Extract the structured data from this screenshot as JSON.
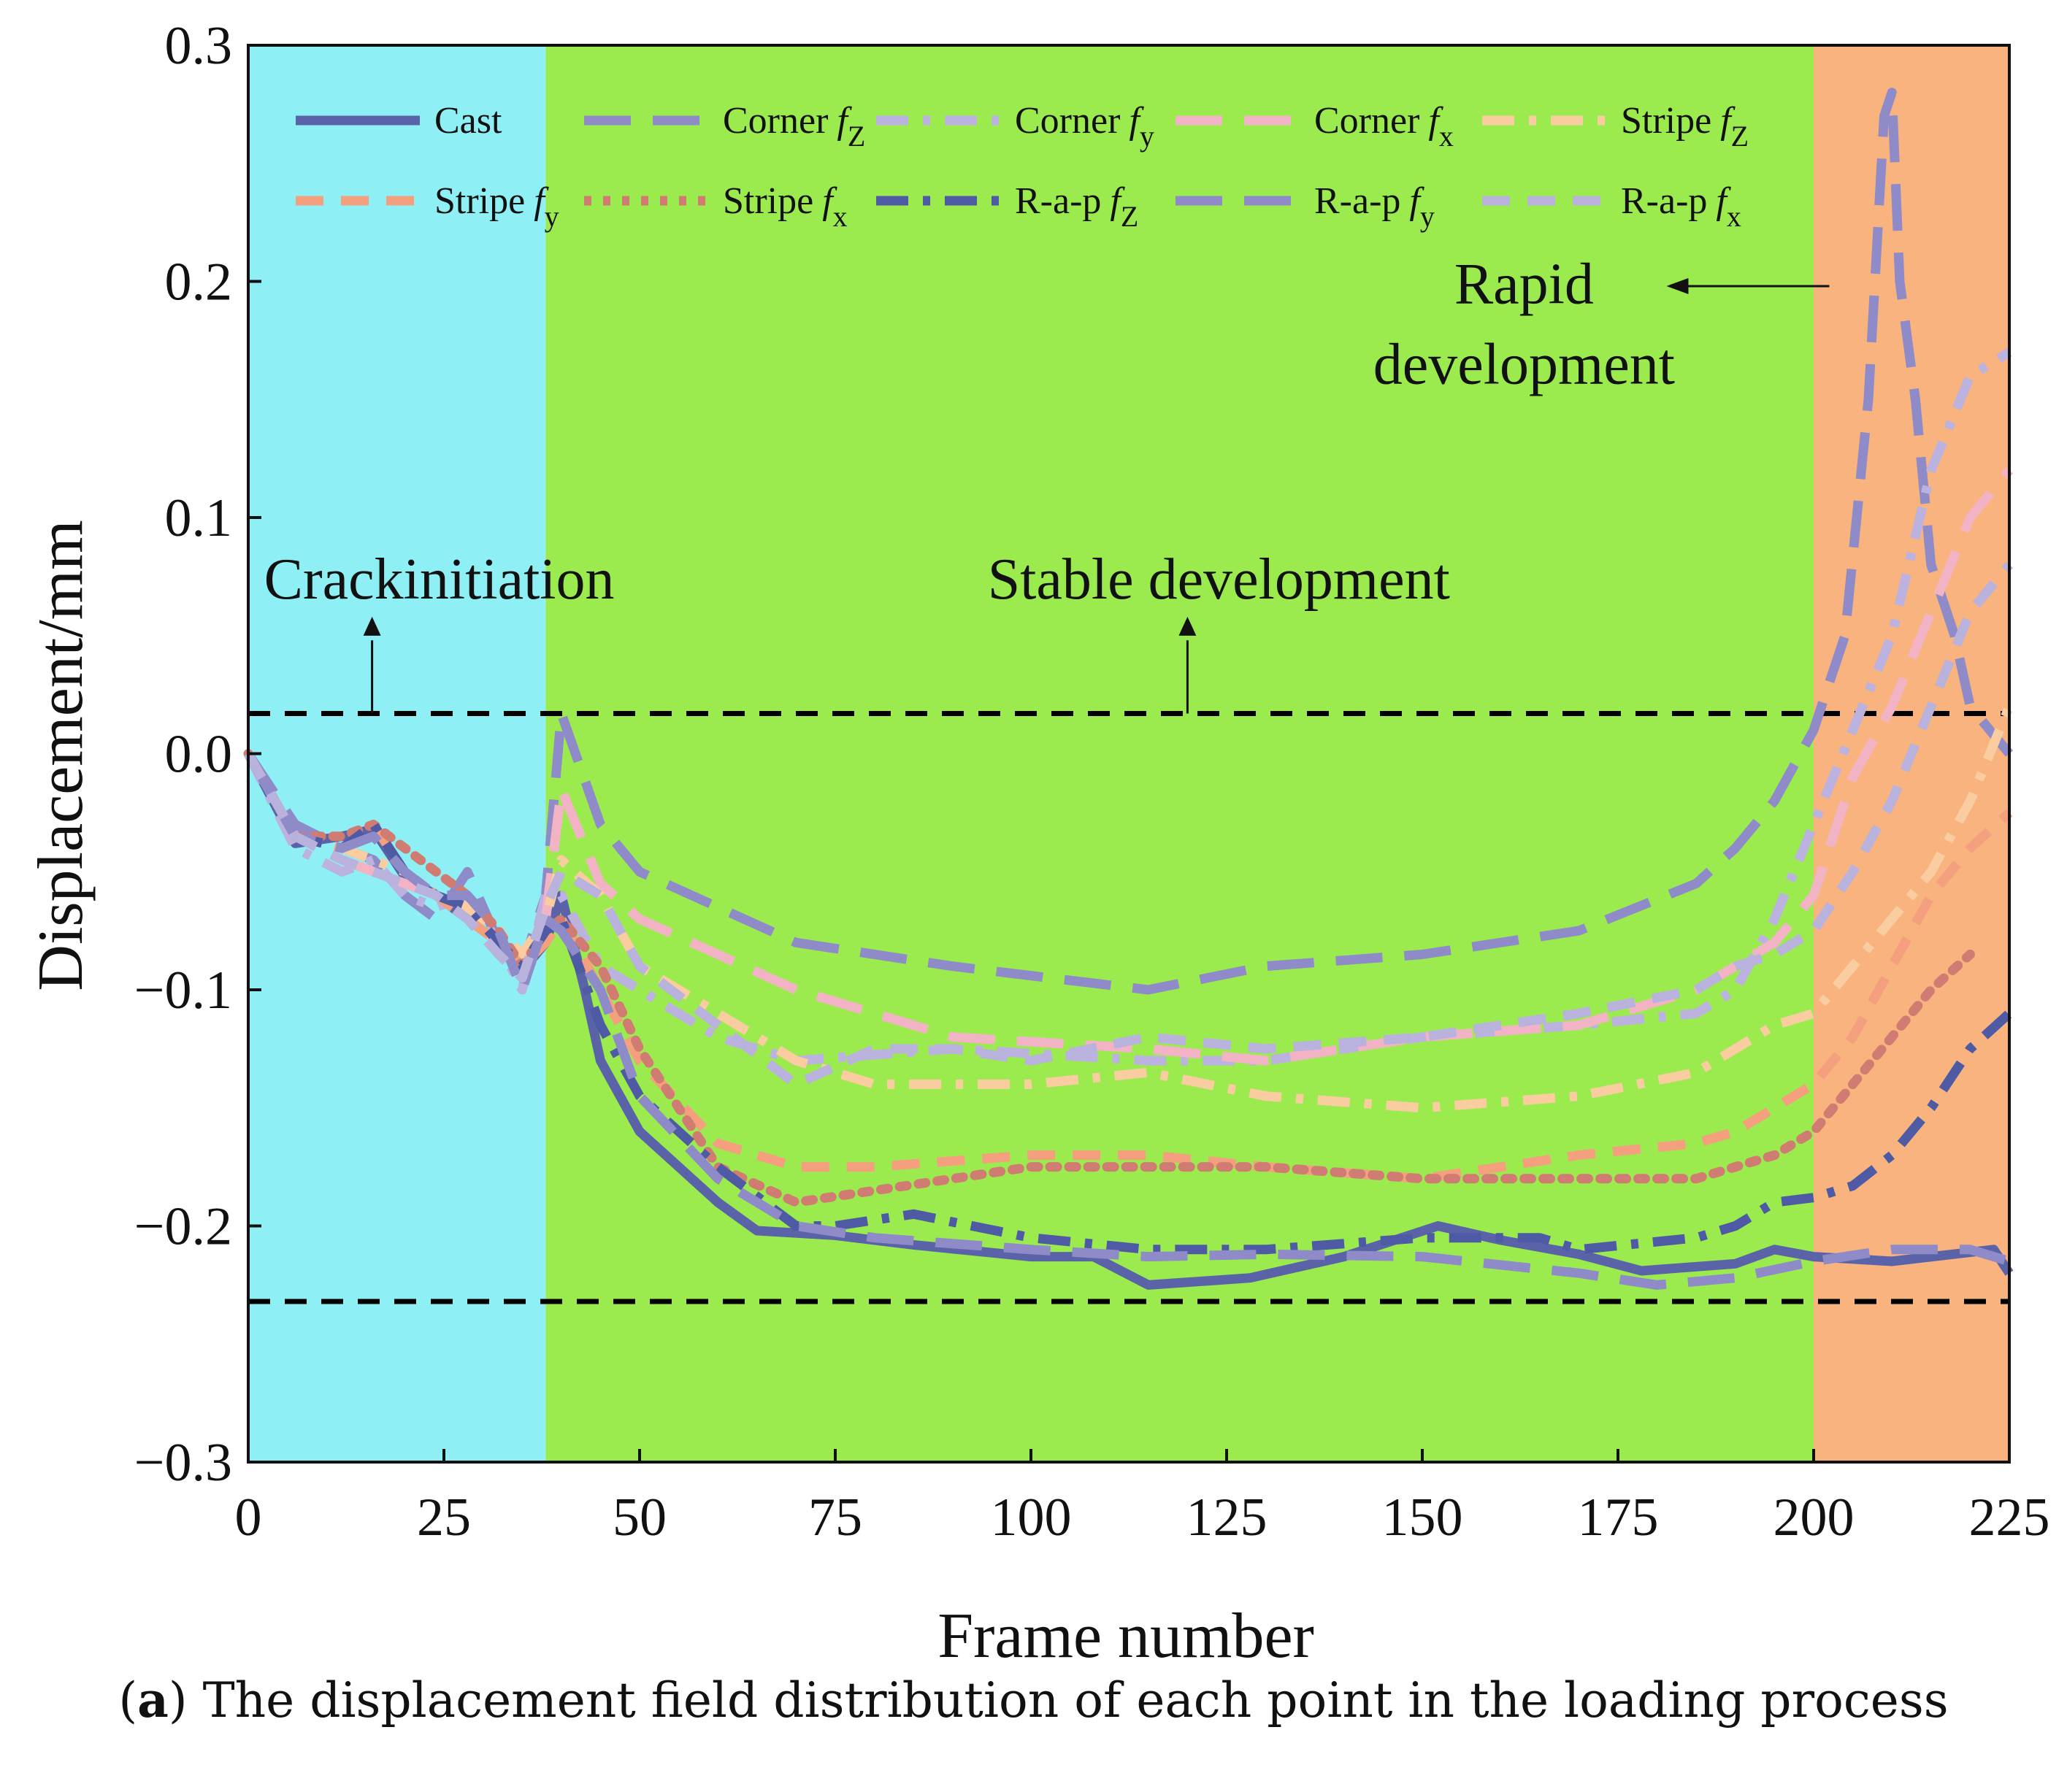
{
  "chart_data": {
    "type": "line",
    "xlabel": "Frame number",
    "ylabel": "Displacement/mm",
    "xlim": [
      0,
      225
    ],
    "ylim": [
      -0.3,
      0.3
    ],
    "x_ticks": [
      0,
      25,
      50,
      75,
      100,
      125,
      150,
      175,
      200,
      225
    ],
    "y_ticks": [
      {
        "value": 0.3,
        "label": "0.3"
      },
      {
        "value": 0.2,
        "label": "0.2"
      },
      {
        "value": 0.1,
        "label": "0.1"
      },
      {
        "value": 0.0,
        "label": "0.0"
      },
      {
        "value": -0.1,
        "label": "−0.1"
      },
      {
        "value": -0.2,
        "label": "−0.2"
      },
      {
        "value": -0.3,
        "label": "−0.3"
      }
    ],
    "grid": false,
    "legend_position": "top (inside plot, two rows)",
    "regions": [
      {
        "x_start": 0,
        "x_end": 38,
        "color": "#8EF0F4"
      },
      {
        "x_start": 38,
        "x_end": 200,
        "color": "#9BEB4F"
      },
      {
        "x_start": 200,
        "x_end": 225,
        "color": "#F8B37E"
      }
    ],
    "reference_lines": [
      {
        "y": 0.017,
        "style": "dashed",
        "color": "#000000"
      },
      {
        "y": -0.232,
        "style": "dashed",
        "color": "#000000"
      }
    ],
    "annotations": [
      {
        "text": "Crackinitiation",
        "x": 30,
        "y": 0.075
      },
      {
        "text": "Stable development",
        "x": 124,
        "y": 0.075
      },
      {
        "text_lines": [
          "Rapid",
          "development"
        ],
        "x": 163,
        "y": 0.2
      }
    ],
    "series": [
      {
        "name": "Cast",
        "sub": "",
        "color": "#5B63A8",
        "dash": "solid",
        "x": [
          0,
          6,
          12,
          16,
          20,
          24,
          28,
          32,
          36,
          38,
          40,
          43,
          45,
          50,
          55,
          60,
          65,
          75,
          85,
          100,
          108,
          115,
          128,
          140,
          152,
          160,
          170,
          178,
          190,
          195,
          200,
          210,
          223,
          225
        ],
        "y": [
          0,
          -0.038,
          -0.035,
          -0.032,
          -0.052,
          -0.06,
          -0.07,
          -0.08,
          -0.088,
          -0.08,
          -0.06,
          -0.1,
          -0.13,
          -0.16,
          -0.175,
          -0.19,
          -0.202,
          -0.204,
          -0.208,
          -0.213,
          -0.213,
          -0.225,
          -0.222,
          -0.213,
          -0.2,
          -0.206,
          -0.212,
          -0.219,
          -0.216,
          -0.21,
          -0.213,
          -0.215,
          -0.21,
          -0.22
        ]
      },
      {
        "name": "Corner",
        "sub": "Z",
        "color": "#8E8BC8",
        "dash": "long-dash",
        "x": [
          0,
          6,
          12,
          16,
          20,
          24,
          28,
          32,
          35,
          38,
          40,
          45,
          50,
          60,
          70,
          90,
          115,
          130,
          150,
          170,
          185,
          190,
          195,
          200,
          204,
          207,
          209,
          210,
          211,
          213,
          215,
          218,
          220,
          225
        ],
        "y": [
          0,
          -0.03,
          -0.04,
          -0.045,
          -0.06,
          -0.07,
          -0.05,
          -0.08,
          -0.09,
          -0.06,
          0.017,
          -0.03,
          -0.05,
          -0.065,
          -0.08,
          -0.09,
          -0.1,
          -0.09,
          -0.085,
          -0.075,
          -0.055,
          -0.04,
          -0.02,
          0.01,
          0.05,
          0.15,
          0.27,
          0.28,
          0.2,
          0.15,
          0.08,
          0.05,
          0.02,
          0.0
        ]
      },
      {
        "name": "Corner",
        "sub": "y",
        "color": "#BCB2E0",
        "dash": "dash-dot",
        "x": [
          0,
          6,
          12,
          16,
          20,
          24,
          28,
          32,
          35,
          38,
          40,
          45,
          50,
          60,
          70,
          90,
          115,
          130,
          150,
          170,
          185,
          190,
          195,
          200,
          205,
          210,
          215,
          220,
          225
        ],
        "y": [
          0,
          -0.04,
          -0.05,
          -0.045,
          -0.06,
          -0.065,
          -0.06,
          -0.08,
          -0.1,
          -0.06,
          -0.06,
          -0.09,
          -0.1,
          -0.12,
          -0.13,
          -0.125,
          -0.13,
          -0.13,
          -0.12,
          -0.115,
          -0.11,
          -0.1,
          -0.07,
          -0.03,
          0.01,
          0.05,
          0.12,
          0.16,
          0.17
        ]
      },
      {
        "name": "Corner",
        "sub": "x",
        "color": "#F2B4C4",
        "dash": "long-dash",
        "x": [
          0,
          6,
          12,
          16,
          20,
          24,
          28,
          32,
          35,
          38,
          40,
          45,
          50,
          60,
          70,
          90,
          115,
          130,
          150,
          170,
          185,
          190,
          195,
          200,
          205,
          210,
          215,
          220,
          225
        ],
        "y": [
          0,
          -0.035,
          -0.045,
          -0.05,
          -0.055,
          -0.06,
          -0.07,
          -0.08,
          -0.09,
          -0.07,
          -0.015,
          -0.055,
          -0.07,
          -0.085,
          -0.1,
          -0.12,
          -0.125,
          -0.13,
          -0.12,
          -0.115,
          -0.1,
          -0.09,
          -0.08,
          -0.06,
          -0.01,
          0.02,
          0.06,
          0.1,
          0.12
        ]
      },
      {
        "name": "Stripe",
        "sub": "Z",
        "color": "#F9CDA0",
        "dash": "dash-dot",
        "x": [
          0,
          6,
          12,
          16,
          20,
          24,
          28,
          32,
          35,
          38,
          40,
          45,
          50,
          60,
          70,
          80,
          100,
          115,
          130,
          150,
          170,
          185,
          190,
          195,
          200,
          205,
          210,
          215,
          220,
          225
        ],
        "y": [
          0,
          -0.035,
          -0.04,
          -0.045,
          -0.05,
          -0.06,
          -0.065,
          -0.075,
          -0.085,
          -0.07,
          -0.045,
          -0.06,
          -0.09,
          -0.11,
          -0.13,
          -0.14,
          -0.14,
          -0.135,
          -0.145,
          -0.15,
          -0.145,
          -0.135,
          -0.125,
          -0.115,
          -0.11,
          -0.09,
          -0.07,
          -0.05,
          -0.02,
          0.02
        ]
      },
      {
        "name": "Stripe",
        "sub": "y",
        "color": "#F4A07F",
        "dash": "dash",
        "x": [
          0,
          6,
          12,
          16,
          20,
          24,
          28,
          32,
          35,
          38,
          40,
          45,
          50,
          60,
          70,
          80,
          100,
          115,
          130,
          150,
          170,
          185,
          190,
          195,
          200,
          205,
          210,
          215,
          220,
          225
        ],
        "y": [
          0,
          -0.035,
          -0.04,
          -0.03,
          -0.05,
          -0.06,
          -0.07,
          -0.08,
          -0.09,
          -0.08,
          -0.07,
          -0.1,
          -0.13,
          -0.165,
          -0.175,
          -0.175,
          -0.17,
          -0.17,
          -0.175,
          -0.18,
          -0.17,
          -0.165,
          -0.16,
          -0.15,
          -0.14,
          -0.12,
          -0.09,
          -0.06,
          -0.04,
          -0.025
        ]
      },
      {
        "name": "Stripe",
        "sub": "x",
        "color": "#D07C72",
        "dash": "dotted",
        "x": [
          0,
          6,
          12,
          16,
          20,
          24,
          28,
          32,
          35,
          38,
          40,
          45,
          50,
          60,
          70,
          80,
          90,
          100,
          115,
          130,
          150,
          170,
          185,
          190,
          195,
          200,
          205,
          210,
          215,
          220
        ],
        "y": [
          0,
          -0.035,
          -0.035,
          -0.03,
          -0.04,
          -0.05,
          -0.06,
          -0.075,
          -0.09,
          -0.075,
          -0.07,
          -0.09,
          -0.125,
          -0.175,
          -0.19,
          -0.185,
          -0.18,
          -0.175,
          -0.175,
          -0.175,
          -0.18,
          -0.18,
          -0.18,
          -0.175,
          -0.17,
          -0.16,
          -0.14,
          -0.12,
          -0.1,
          -0.085
        ]
      },
      {
        "name": "R-a-p",
        "sub": "Z",
        "color": "#4E5BA4",
        "dash": "dash-dot",
        "x": [
          0,
          6,
          12,
          16,
          20,
          24,
          28,
          32,
          35,
          38,
          40,
          45,
          50,
          60,
          70,
          75,
          85,
          100,
          115,
          130,
          150,
          165,
          170,
          185,
          190,
          195,
          200,
          205,
          210,
          215,
          220,
          225
        ],
        "y": [
          0,
          -0.035,
          -0.04,
          -0.03,
          -0.05,
          -0.06,
          -0.065,
          -0.08,
          -0.09,
          -0.075,
          -0.07,
          -0.115,
          -0.145,
          -0.175,
          -0.2,
          -0.2,
          -0.195,
          -0.205,
          -0.21,
          -0.21,
          -0.205,
          -0.205,
          -0.21,
          -0.205,
          -0.2,
          -0.19,
          -0.188,
          -0.183,
          -0.17,
          -0.15,
          -0.125,
          -0.11
        ]
      },
      {
        "name": "R-a-p",
        "sub": "y",
        "color": "#8E8BC8",
        "dash": "long-dash",
        "x": [
          0,
          6,
          12,
          16,
          20,
          24,
          28,
          32,
          35,
          38,
          40,
          45,
          50,
          60,
          70,
          80,
          100,
          115,
          130,
          150,
          170,
          180,
          190,
          200,
          210,
          220,
          225
        ],
        "y": [
          0,
          -0.035,
          -0.04,
          -0.035,
          -0.05,
          -0.06,
          -0.06,
          -0.075,
          -0.1,
          -0.07,
          -0.075,
          -0.1,
          -0.145,
          -0.18,
          -0.2,
          -0.205,
          -0.21,
          -0.213,
          -0.212,
          -0.213,
          -0.22,
          -0.225,
          -0.222,
          -0.215,
          -0.21,
          -0.21,
          -0.215
        ]
      },
      {
        "name": "R-a-p",
        "sub": "x",
        "color": "#B8B2DC",
        "dash": "dash",
        "x": [
          0,
          6,
          12,
          16,
          20,
          24,
          28,
          32,
          35,
          38,
          40,
          45,
          50,
          60,
          70,
          80,
          90,
          100,
          115,
          130,
          150,
          170,
          185,
          190,
          195,
          200,
          205,
          210,
          215,
          220,
          225
        ],
        "y": [
          0,
          -0.035,
          -0.045,
          -0.05,
          -0.055,
          -0.06,
          -0.07,
          -0.085,
          -0.095,
          -0.065,
          -0.05,
          -0.06,
          -0.09,
          -0.115,
          -0.14,
          -0.125,
          -0.125,
          -0.13,
          -0.12,
          -0.125,
          -0.12,
          -0.11,
          -0.1,
          -0.09,
          -0.085,
          -0.075,
          -0.05,
          -0.02,
          0.02,
          0.06,
          0.08
        ]
      }
    ]
  },
  "caption": {
    "prefix": "(",
    "label": "a",
    "text": ") The displacement field distribution of each point in the loading process"
  }
}
